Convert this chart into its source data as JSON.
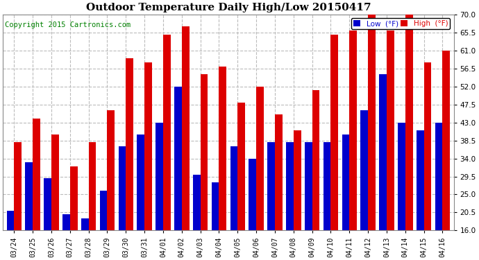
{
  "title": "Outdoor Temperature Daily High/Low 20150417",
  "copyright": "Copyright 2015 Cartronics.com",
  "legend_low": "Low  (°F)",
  "legend_high": "High  (°F)",
  "dates": [
    "03/24",
    "03/25",
    "03/26",
    "03/27",
    "03/28",
    "03/29",
    "03/30",
    "03/31",
    "04/01",
    "04/02",
    "04/03",
    "04/04",
    "04/05",
    "04/06",
    "04/07",
    "04/08",
    "04/09",
    "04/10",
    "04/11",
    "04/12",
    "04/13",
    "04/14",
    "04/15",
    "04/16"
  ],
  "lows": [
    21,
    33,
    29,
    20,
    19,
    26,
    37,
    40,
    43,
    52,
    30,
    28,
    37,
    34,
    38,
    38,
    38,
    38,
    40,
    46,
    55,
    43,
    41,
    43
  ],
  "highs": [
    38,
    44,
    40,
    32,
    38,
    46,
    59,
    58,
    65,
    67,
    55,
    57,
    48,
    52,
    45,
    41,
    51,
    65,
    66,
    70,
    66,
    70,
    58,
    61
  ],
  "low_color": "#0000cc",
  "high_color": "#dd0000",
  "bg_color": "#ffffff",
  "grid_color": "#bbbbbb",
  "ylim": [
    16.0,
    70.0
  ],
  "ybase": 16.0,
  "yticks": [
    16.0,
    20.5,
    25.0,
    29.5,
    34.0,
    38.5,
    43.0,
    47.5,
    52.0,
    56.5,
    61.0,
    65.5,
    70.0
  ],
  "title_fontsize": 11,
  "copyright_fontsize": 7.5,
  "bar_width": 0.4
}
